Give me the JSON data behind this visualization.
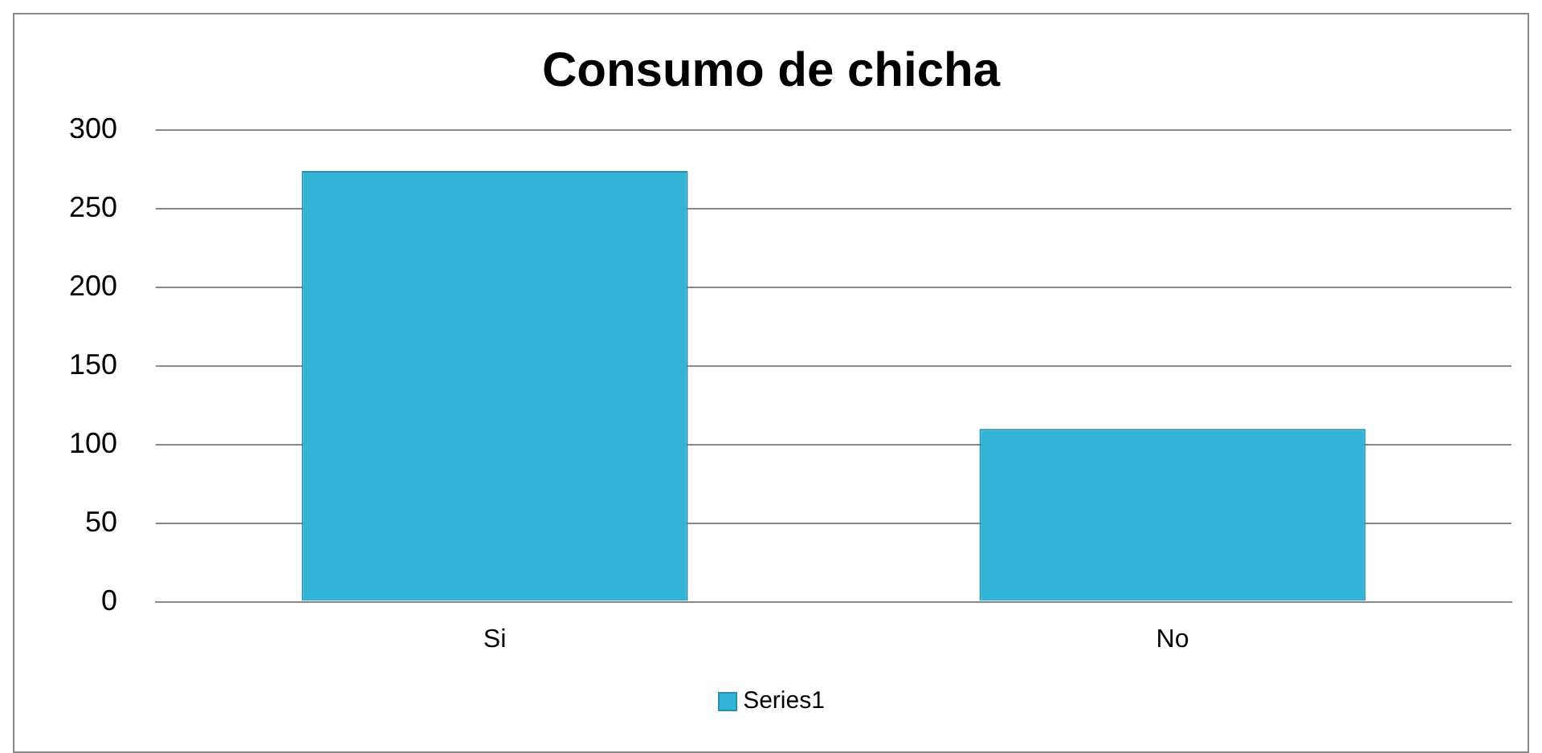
{
  "chart_data": {
    "type": "bar",
    "title": "Consumo de chicha",
    "categories": [
      "Si",
      "No"
    ],
    "series": [
      {
        "name": "Series1",
        "color": "#33b4d6",
        "values": [
          274,
          110
        ]
      }
    ],
    "ylim": [
      0,
      300
    ],
    "yticks": [
      0,
      50,
      100,
      150,
      200,
      250,
      300
    ],
    "grid": "y",
    "legend": "bottom"
  }
}
